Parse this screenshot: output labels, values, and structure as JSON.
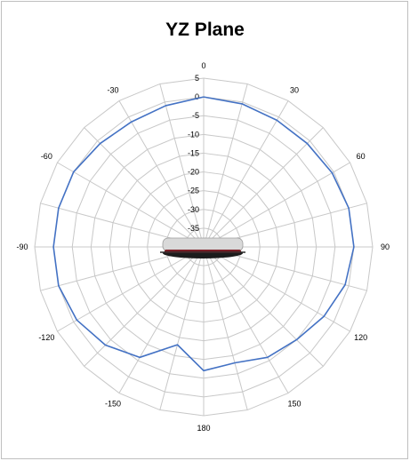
{
  "colors": {
    "series": "#4472c4",
    "grid": "#c8c8c8",
    "device_body": "#d9d9d9",
    "device_band": "#7a1e26"
  },
  "chart_data": {
    "type": "polar-line",
    "title": "YZ Plane",
    "radial_axis": {
      "min": -40,
      "max": 5,
      "ticks": [
        5,
        0,
        -5,
        -10,
        -15,
        -20,
        -25,
        -30,
        -35
      ]
    },
    "angular_axis": {
      "step_degrees": 15,
      "labels": [
        {
          "angle": 0,
          "text": "0"
        },
        {
          "angle": 30,
          "text": "30"
        },
        {
          "angle": 60,
          "text": "60"
        },
        {
          "angle": 90,
          "text": "90"
        },
        {
          "angle": 120,
          "text": "120"
        },
        {
          "angle": 150,
          "text": "150"
        },
        {
          "angle": 180,
          "text": "180"
        },
        {
          "angle": -150,
          "text": "-150"
        },
        {
          "angle": -120,
          "text": "-120"
        },
        {
          "angle": -90,
          "text": "-90"
        },
        {
          "angle": -60,
          "text": "-60"
        },
        {
          "angle": -30,
          "text": "-30"
        }
      ]
    },
    "grid": true,
    "series": [
      {
        "angles": [
          0,
          15,
          30,
          45,
          60,
          75,
          90,
          105,
          120,
          135,
          150,
          165,
          180,
          -165,
          -150,
          -135,
          -120,
          -105,
          -90,
          -75,
          -60,
          -45,
          -30,
          -15,
          0
        ],
        "values": [
          0,
          -0.5,
          -1,
          -1,
          -0.5,
          0,
          0,
          -1,
          -3,
          -5,
          -6,
          -8,
          -7,
          -13,
          -6,
          -3,
          -1,
          0,
          0,
          0,
          0,
          -1,
          -1.5,
          -1,
          0
        ]
      }
    ]
  }
}
